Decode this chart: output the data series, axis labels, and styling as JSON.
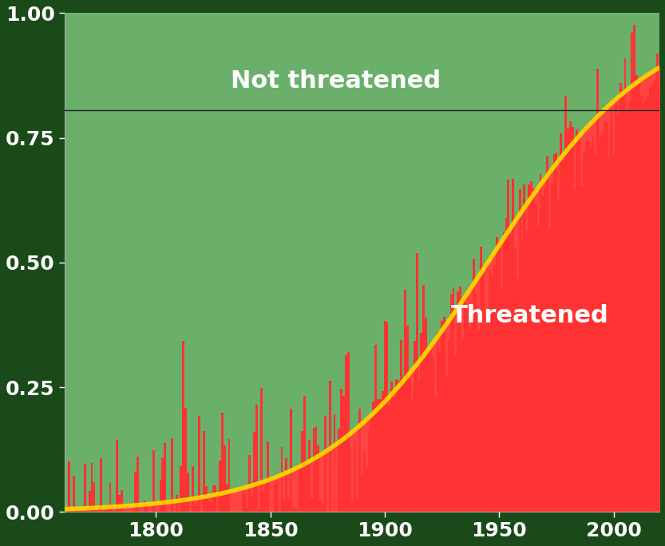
{
  "year_start": 1760,
  "year_end": 2020,
  "ylim": [
    0.0,
    1.0
  ],
  "background_color": "#1a4a1a",
  "plot_bg_green": "#6ab06a",
  "bar_color": "#ff3333",
  "line_color": "#ffcc00",
  "horizontal_line_y": 0.805,
  "horizontal_line_color": "#222222",
  "not_threatened_label": "Not threatened",
  "threatened_label": "Threatened",
  "label_color": "white",
  "tick_label_color": "white",
  "tick_fontsize": 18,
  "logistic_k": 0.028,
  "logistic_midpoint": 1945,
  "red_fill_color": "#ff4444",
  "line_width": 4.0
}
